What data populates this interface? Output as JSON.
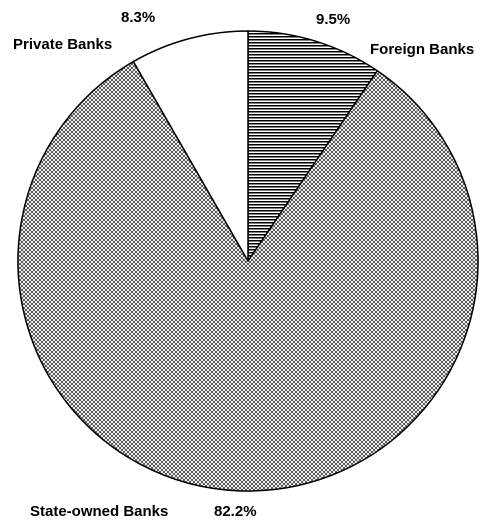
{
  "chart_data": {
    "type": "pie",
    "title": "",
    "slices": [
      {
        "name": "Foreign Banks",
        "value": 9.5,
        "value_label": "9.5%",
        "pattern": "horizontal-lines"
      },
      {
        "name": "State-owned Banks",
        "value": 82.2,
        "value_label": "82.2%",
        "pattern": "crosshatch"
      },
      {
        "name": "Private Banks",
        "value": 8.3,
        "value_label": "8.3%",
        "pattern": "solid-white"
      }
    ],
    "start_angle": "12 o'clock",
    "direction": "clockwise",
    "legend": "none",
    "colors": {
      "outline": "#000000",
      "pattern": "#000000",
      "background": "#ffffff"
    }
  }
}
